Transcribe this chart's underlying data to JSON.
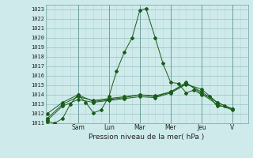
{
  "xlabel": "Pression niveau de la mer( hPa )",
  "bg_color": "#ceeaea",
  "line_color": "#1a5c1a",
  "grid_minor_color": "#b8d8d8",
  "grid_major_color": "#a0c8c8",
  "ylim": [
    1011,
    1023.5
  ],
  "yticks": [
    1011,
    1012,
    1013,
    1014,
    1015,
    1016,
    1017,
    1018,
    1019,
    1020,
    1021,
    1022,
    1023
  ],
  "day_labels": [
    "Sam",
    "Lun",
    "Mar",
    "Mer",
    "Jeu",
    "V"
  ],
  "day_positions": [
    2.0,
    4.0,
    6.0,
    8.0,
    10.0,
    12.0
  ],
  "xlim": [
    -0.1,
    13.0
  ],
  "series": [
    {
      "x": [
        0,
        0.5,
        1,
        1.5,
        2,
        2.5,
        3,
        3.5,
        4,
        4.5,
        5,
        5.5,
        6,
        6.4,
        7,
        7.5,
        8,
        8.5,
        9,
        9.5,
        10,
        10.5,
        11,
        11.5,
        12
      ],
      "y": [
        1011.2,
        1011.0,
        1011.5,
        1013.0,
        1014.0,
        1013.2,
        1012.1,
        1012.4,
        1013.8,
        1016.5,
        1018.5,
        1020.0,
        1022.9,
        1023.1,
        1020.0,
        1017.3,
        1015.3,
        1015.2,
        1014.2,
        1014.5,
        1014.0,
        1013.8,
        1012.8,
        1012.8,
        1012.5
      ]
    },
    {
      "x": [
        0,
        1,
        2,
        3,
        4,
        5,
        6,
        7,
        8,
        9,
        10,
        11,
        12
      ],
      "y": [
        1011.3,
        1012.8,
        1013.5,
        1013.2,
        1013.4,
        1013.6,
        1013.8,
        1013.7,
        1014.2,
        1015.1,
        1014.6,
        1013.2,
        1012.5
      ]
    },
    {
      "x": [
        0,
        1,
        2,
        3,
        4,
        5,
        6,
        7,
        8,
        9,
        10,
        11,
        12
      ],
      "y": [
        1011.5,
        1013.0,
        1013.8,
        1013.4,
        1013.6,
        1013.8,
        1014.0,
        1013.9,
        1014.3,
        1015.2,
        1014.3,
        1013.2,
        1012.5
      ]
    },
    {
      "x": [
        0,
        1,
        2,
        3,
        4,
        5,
        6,
        7,
        8,
        9,
        10,
        11,
        12
      ],
      "y": [
        1012.0,
        1013.2,
        1014.0,
        1013.3,
        1013.5,
        1013.7,
        1014.0,
        1013.8,
        1014.3,
        1015.3,
        1014.1,
        1013.0,
        1012.4
      ]
    }
  ]
}
